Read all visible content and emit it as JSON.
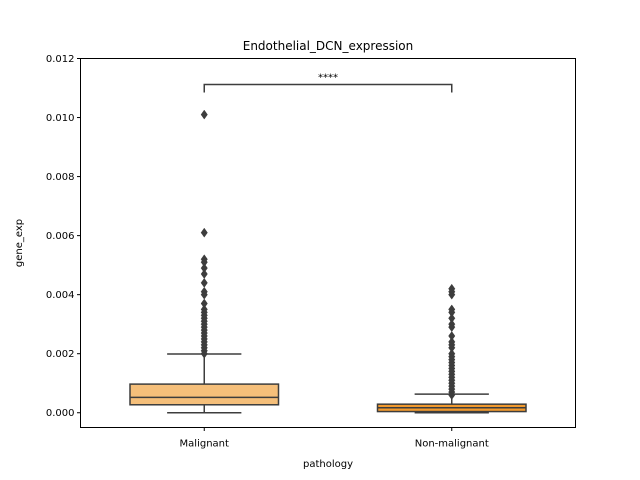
{
  "chart_data": {
    "type": "box",
    "title": "Endothelial_DCN_expression",
    "xlabel": "pathology",
    "ylabel": "gene_exp",
    "ylim": [
      -0.0005,
      0.012
    ],
    "yticks": [
      "0.000",
      "0.002",
      "0.004",
      "0.006",
      "0.008",
      "0.010",
      "0.012"
    ],
    "ytick_values": [
      0,
      0.002,
      0.004,
      0.006,
      0.008,
      0.01,
      0.012
    ],
    "grid": false,
    "categories": [
      "Malignant",
      "Non-malignant"
    ],
    "boxes": [
      {
        "category": "Malignant",
        "color": "#f5bf7a",
        "whisker_low": 0.0,
        "q1": 0.00027,
        "median": 0.00052,
        "q3": 0.00097,
        "whisker_high": 0.00199,
        "outliers": [
          0.0101,
          0.0061,
          0.0052,
          0.0051,
          0.0049,
          0.0047,
          0.0044,
          0.0041,
          0.004,
          0.0037,
          0.0035,
          0.0034,
          0.0033,
          0.0032,
          0.0031,
          0.003,
          0.0029,
          0.0028,
          0.0027,
          0.0026,
          0.0025,
          0.0024,
          0.0023,
          0.0022,
          0.0021,
          0.002
        ]
      },
      {
        "category": "Non-malignant",
        "color": "#f29a2e",
        "whisker_low": 0.0,
        "q1": 4e-05,
        "median": 0.00017,
        "q3": 0.00029,
        "whisker_high": 0.00063,
        "outliers": [
          0.0042,
          0.0041,
          0.004,
          0.0035,
          0.0034,
          0.0032,
          0.003,
          0.0029,
          0.0026,
          0.0024,
          0.0023,
          0.0022,
          0.002,
          0.0019,
          0.0018,
          0.0017,
          0.0016,
          0.0015,
          0.0014,
          0.0013,
          0.0012,
          0.0011,
          0.001,
          0.0009,
          0.0008,
          0.0007,
          0.0006
        ]
      }
    ],
    "annotation": {
      "text": "****",
      "between": [
        "Malignant",
        "Non-malignant"
      ],
      "y": 0.01112
    }
  }
}
